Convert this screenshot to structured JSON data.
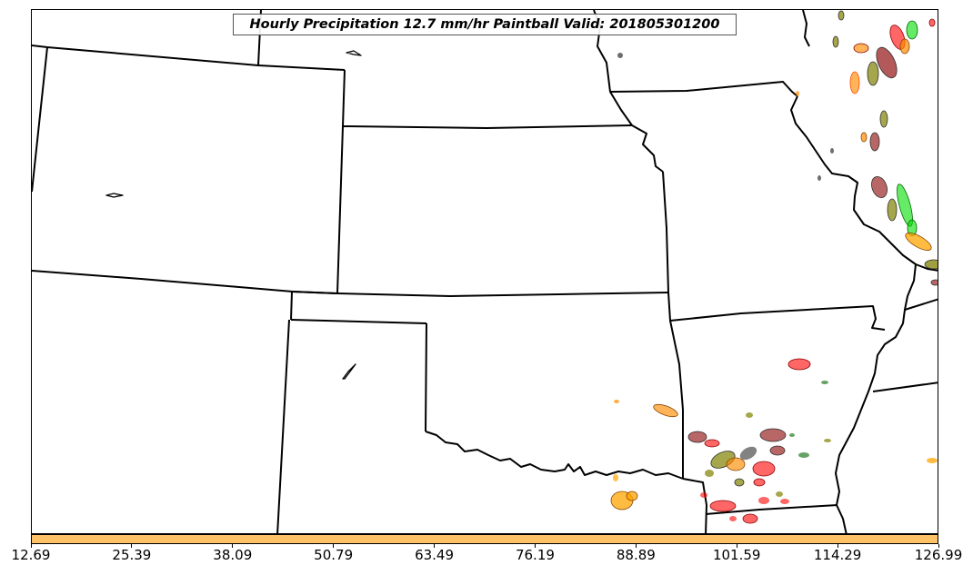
{
  "title": "Hourly Precipitation 12.7 mm/hr Paintball Valid: 201805301200",
  "colorbar": {
    "color": "#ffc266",
    "ticks": [
      "12.69",
      "25.39",
      "38.09",
      "50.79",
      "63.49",
      "76.19",
      "88.89",
      "101.59",
      "114.29",
      "126.99"
    ]
  },
  "colors": {
    "state_border": "#000000",
    "frame": "#000000",
    "paintball_palette": [
      "#ff0000",
      "#8b0000",
      "#2f2f2f",
      "#ff8c00",
      "#ffa500",
      "#808000",
      "#006400",
      "#00dd00"
    ]
  }
}
